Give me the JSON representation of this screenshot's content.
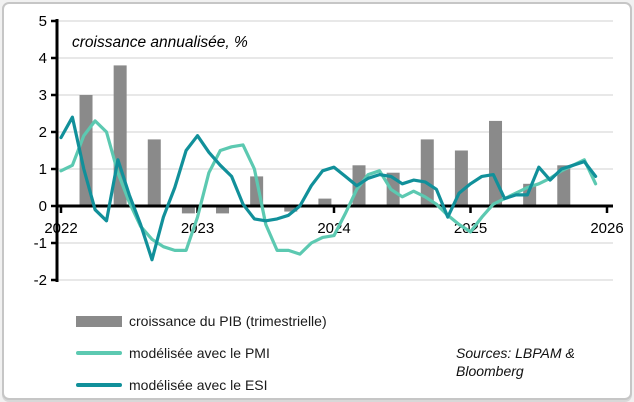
{
  "legend": {
    "items": [
      {
        "label": "croissance du PIB (trimestrielle)",
        "type": "bar",
        "color": "#8a8a8a"
      },
      {
        "label": "modélisée avec le PMI",
        "type": "line",
        "color": "#5cc9b1"
      },
      {
        "label": "modélisée avec le ESI",
        "type": "line",
        "color": "#11909a"
      }
    ]
  },
  "source_note": {
    "line1": "Sources: LBPAM &",
    "line2": "Bloomberg"
  },
  "chart_data": {
    "type": "bar",
    "subtype": "combo-bar-line",
    "title": "croissance annualisée, %",
    "unit": "%",
    "y_axis": {
      "min": -2,
      "max": 5,
      "ticks": [
        5,
        4,
        3,
        2,
        1,
        0,
        -1,
        -2
      ],
      "gridlines": true
    },
    "x_axis": {
      "ticks": [
        "2022",
        "2023",
        "2024",
        "2025",
        "2026"
      ],
      "bars_frequency": "quarterly",
      "lines_frequency": "monthly"
    },
    "bars": {
      "name": "croissance du PIB (trimestrielle)",
      "color": "#8a8a8a",
      "quarters": [
        "T1 2022",
        "T2 2022",
        "T3 2022",
        "T4 2022",
        "T1 2023",
        "T2 2023",
        "T3 2023",
        "T4 2023",
        "T1 2024",
        "T2 2024",
        "T3 2024",
        "T4 2024",
        "T1 2025",
        "T2 2025",
        "T3 2025"
      ],
      "values": [
        3.0,
        3.8,
        1.8,
        -0.2,
        -0.2,
        0.8,
        -0.15,
        0.2,
        1.1,
        0.9,
        1.8,
        1.5,
        2.3,
        0.6,
        1.1
      ]
    },
    "months": [
      "2022-01",
      "2022-02",
      "2022-03",
      "2022-04",
      "2022-05",
      "2022-06",
      "2022-07",
      "2022-08",
      "2022-09",
      "2022-10",
      "2022-11",
      "2022-12",
      "2023-01",
      "2023-02",
      "2023-03",
      "2023-04",
      "2023-05",
      "2023-06",
      "2023-07",
      "2023-08",
      "2023-09",
      "2023-10",
      "2023-11",
      "2023-12",
      "2024-01",
      "2024-02",
      "2024-03",
      "2024-04",
      "2024-05",
      "2024-06",
      "2024-07",
      "2024-08",
      "2024-09",
      "2024-10",
      "2024-11",
      "2024-12",
      "2025-01",
      "2025-02",
      "2025-03",
      "2025-04",
      "2025-05",
      "2025-06",
      "2025-07",
      "2025-08",
      "2025-09",
      "2025-10",
      "2025-11",
      "2025-12"
    ],
    "series": [
      {
        "name": "modélisée avec le PMI",
        "color": "#5cc9b1",
        "values": [
          0.95,
          1.1,
          1.9,
          2.3,
          2.0,
          0.9,
          0.1,
          -0.55,
          -0.9,
          -1.1,
          -1.2,
          -1.2,
          -0.3,
          0.9,
          1.5,
          1.6,
          1.65,
          1.0,
          -0.5,
          -1.2,
          -1.2,
          -1.3,
          -1.0,
          -0.85,
          -0.8,
          -0.2,
          0.45,
          0.85,
          0.95,
          0.45,
          0.25,
          0.4,
          0.25,
          0.05,
          -0.25,
          -0.5,
          -0.7,
          -0.3,
          0.05,
          0.2,
          0.35,
          0.5,
          0.6,
          0.75,
          0.95,
          1.1,
          1.25,
          0.6
        ]
      },
      {
        "name": "modélisée avec le ESI",
        "color": "#11909a",
        "values": [
          1.85,
          2.4,
          1.0,
          -0.1,
          -0.4,
          1.25,
          0.3,
          -0.5,
          -1.45,
          -0.3,
          0.5,
          1.5,
          1.9,
          1.45,
          1.1,
          0.8,
          0.05,
          -0.35,
          -0.4,
          -0.35,
          -0.25,
          0.0,
          0.55,
          0.95,
          1.05,
          0.8,
          0.55,
          0.75,
          0.85,
          0.8,
          0.6,
          0.7,
          0.65,
          0.45,
          -0.3,
          0.35,
          0.6,
          0.8,
          0.85,
          0.2,
          0.3,
          0.3,
          1.05,
          0.7,
          1.0,
          1.1,
          1.2,
          0.8
        ]
      }
    ],
    "legend_position": "bottom-left"
  }
}
